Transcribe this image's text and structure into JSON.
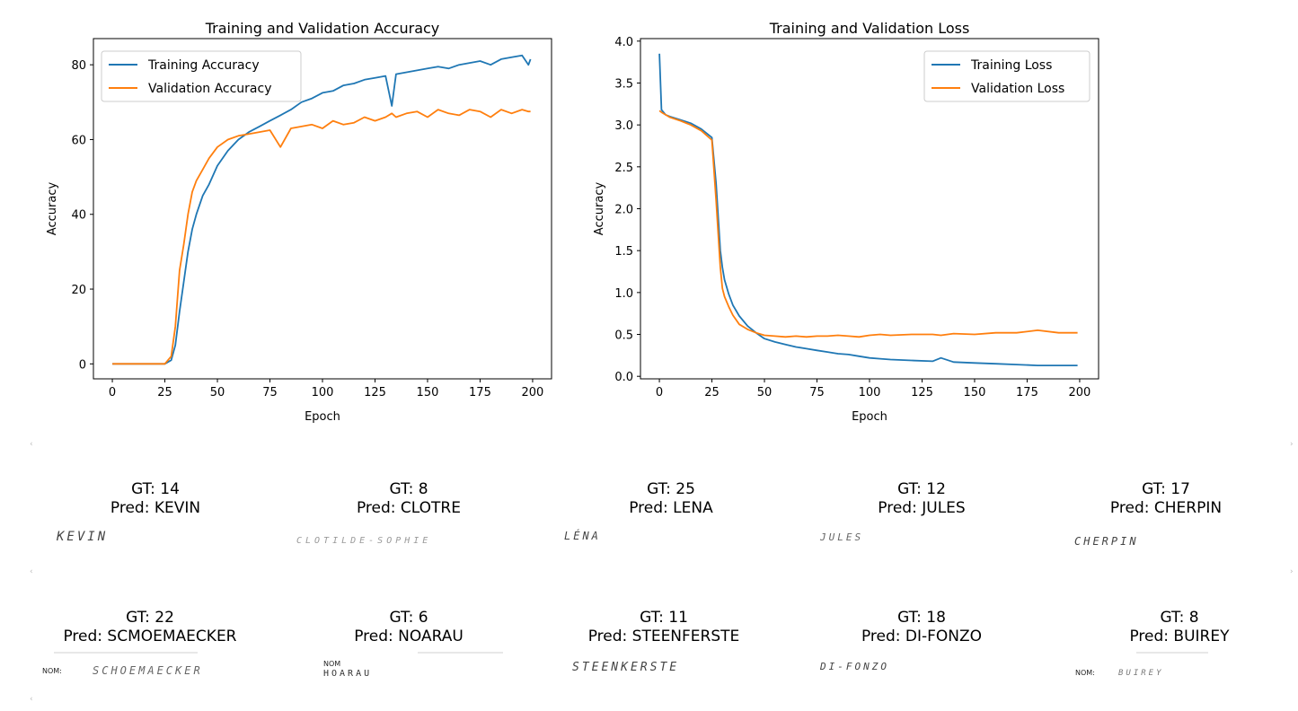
{
  "chart_data": [
    {
      "type": "line",
      "title": "Training and Validation Accuracy",
      "xlabel": "Epoch",
      "ylabel": "Accuracy",
      "xlim": [
        -9,
        209
      ],
      "ylim": [
        -4,
        87
      ],
      "xticks": [
        0,
        25,
        50,
        75,
        100,
        125,
        150,
        175,
        200
      ],
      "yticks": [
        0,
        20,
        40,
        60,
        80
      ],
      "legend": "upper left",
      "x": [
        0,
        10,
        20,
        25,
        28,
        30,
        32,
        34,
        36,
        38,
        40,
        43,
        46,
        50,
        55,
        60,
        65,
        70,
        75,
        80,
        85,
        90,
        95,
        100,
        105,
        110,
        115,
        120,
        125,
        130,
        133,
        135,
        140,
        145,
        150,
        155,
        160,
        165,
        170,
        175,
        180,
        185,
        190,
        195,
        198,
        199
      ],
      "series": [
        {
          "name": "Training Accuracy",
          "color": "#1f77b4",
          "values": [
            0,
            0,
            0,
            0,
            1,
            5,
            14,
            22,
            30,
            36,
            40,
            45,
            48,
            53,
            57,
            60,
            62,
            63.5,
            65,
            66.5,
            68,
            70,
            71,
            72.5,
            73,
            74.5,
            75,
            76,
            76.5,
            77,
            69,
            77.5,
            78,
            78.5,
            79,
            79.5,
            79,
            80,
            80.5,
            81,
            80,
            81.5,
            82,
            82.5,
            80,
            81.5
          ]
        },
        {
          "name": "Validation Accuracy",
          "color": "#ff7f0e",
          "values": [
            0,
            0,
            0,
            0,
            2,
            10,
            25,
            32,
            40,
            46,
            49,
            52,
            55,
            58,
            60,
            61,
            61.5,
            62,
            62.5,
            58,
            63,
            63.5,
            64,
            63,
            65,
            64,
            64.5,
            66,
            65,
            66,
            67,
            66,
            67,
            67.5,
            66,
            68,
            67,
            66.5,
            68,
            67.5,
            66,
            68,
            67,
            68,
            67.5,
            67.5
          ]
        }
      ]
    },
    {
      "type": "line",
      "title": "Training and Validation Loss",
      "xlabel": "Epoch",
      "ylabel": "Accuracy",
      "xlim": [
        -9,
        209
      ],
      "ylim": [
        -0.03,
        4.03
      ],
      "xticks": [
        0,
        25,
        50,
        75,
        100,
        125,
        150,
        175,
        200
      ],
      "yticks": [
        0.0,
        0.5,
        1.0,
        1.5,
        2.0,
        2.5,
        3.0,
        3.5,
        4.0
      ],
      "legend": "upper right",
      "x": [
        0,
        1,
        3,
        5,
        10,
        15,
        20,
        25,
        27,
        29,
        30,
        31,
        33,
        35,
        38,
        42,
        46,
        50,
        55,
        60,
        65,
        70,
        75,
        80,
        85,
        90,
        95,
        100,
        105,
        110,
        120,
        130,
        134,
        140,
        150,
        160,
        170,
        180,
        190,
        199
      ],
      "series": [
        {
          "name": "Training Loss",
          "color": "#1f77b4",
          "values": [
            3.85,
            3.18,
            3.12,
            3.1,
            3.06,
            3.02,
            2.95,
            2.85,
            2.3,
            1.5,
            1.3,
            1.15,
            0.98,
            0.85,
            0.72,
            0.6,
            0.52,
            0.45,
            0.41,
            0.38,
            0.35,
            0.33,
            0.31,
            0.29,
            0.27,
            0.26,
            0.24,
            0.22,
            0.21,
            0.2,
            0.19,
            0.18,
            0.22,
            0.17,
            0.16,
            0.15,
            0.14,
            0.13,
            0.13,
            0.13
          ]
        },
        {
          "name": "Validation Loss",
          "color": "#ff7f0e",
          "values": [
            3.17,
            3.15,
            3.12,
            3.09,
            3.05,
            3.0,
            2.93,
            2.82,
            2.1,
            1.3,
            1.05,
            0.95,
            0.83,
            0.73,
            0.62,
            0.56,
            0.52,
            0.49,
            0.48,
            0.47,
            0.48,
            0.47,
            0.48,
            0.48,
            0.49,
            0.48,
            0.47,
            0.49,
            0.5,
            0.49,
            0.5,
            0.5,
            0.49,
            0.51,
            0.5,
            0.52,
            0.52,
            0.55,
            0.52,
            0.52
          ]
        }
      ]
    }
  ],
  "samples": [
    {
      "gt": "GT: 14",
      "pred": "Pred: KEVIN",
      "handwriting": "KEVIN"
    },
    {
      "gt": "GT: 8",
      "pred": "Pred: CLOTRE",
      "handwriting": "CLOTILDE-SOPHIE"
    },
    {
      "gt": "GT: 25",
      "pred": "Pred: LENA",
      "handwriting": "LÉNA"
    },
    {
      "gt": "GT: 12",
      "pred": "Pred: JULES",
      "handwriting": "JULES"
    },
    {
      "gt": "GT: 17",
      "pred": "Pred: CHERPIN",
      "handwriting": "CHERPIN"
    },
    {
      "gt": "GT: 22",
      "pred": "Pred: SCMOEMAECKER",
      "handwriting": "SCHOEMAECKER",
      "form_label": "NOM:"
    },
    {
      "gt": "GT: 6",
      "pred": "Pred: NOARAU",
      "handwriting": "HOARAU",
      "form_label": "NOM"
    },
    {
      "gt": "GT: 11",
      "pred": "Pred: STEENFERSTE",
      "handwriting": "STEENKERSTE"
    },
    {
      "gt": "GT: 18",
      "pred": "Pred: DI-FONZO",
      "handwriting": "DI-FONZO"
    },
    {
      "gt": "GT: 8",
      "pred": "Pred: BUIREY",
      "handwriting": "BUIREY",
      "form_label": "NOM:"
    }
  ]
}
